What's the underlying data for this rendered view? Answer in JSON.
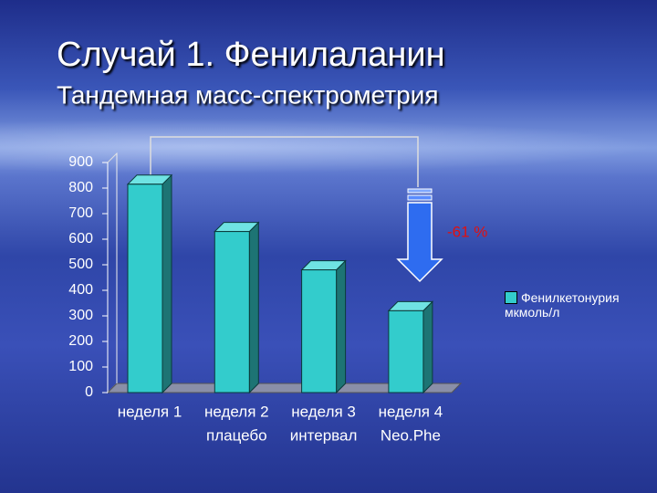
{
  "chart_data": {
    "type": "bar3d",
    "title": "Случай 1. Фенилаланин",
    "subtitle": "Тандемная масс-спектрометрия",
    "categories": [
      "неделя 1",
      "неделя 2",
      "неделя 3",
      "неделя 4"
    ],
    "sublabels": [
      null,
      "плацебо",
      "интервал",
      "Neo.Phe"
    ],
    "series": [
      {
        "name": "Фенилкетонурия мкмоль/л",
        "color": "#33cccc",
        "values": [
          815,
          630,
          480,
          320
        ]
      }
    ],
    "annotation": "-61 %",
    "annotation_color": "#e01010",
    "ylim": [
      0,
      900
    ],
    "yticks": [
      0,
      100,
      200,
      300,
      400,
      500,
      600,
      700,
      800,
      900
    ],
    "grid": false,
    "legend": "right"
  }
}
